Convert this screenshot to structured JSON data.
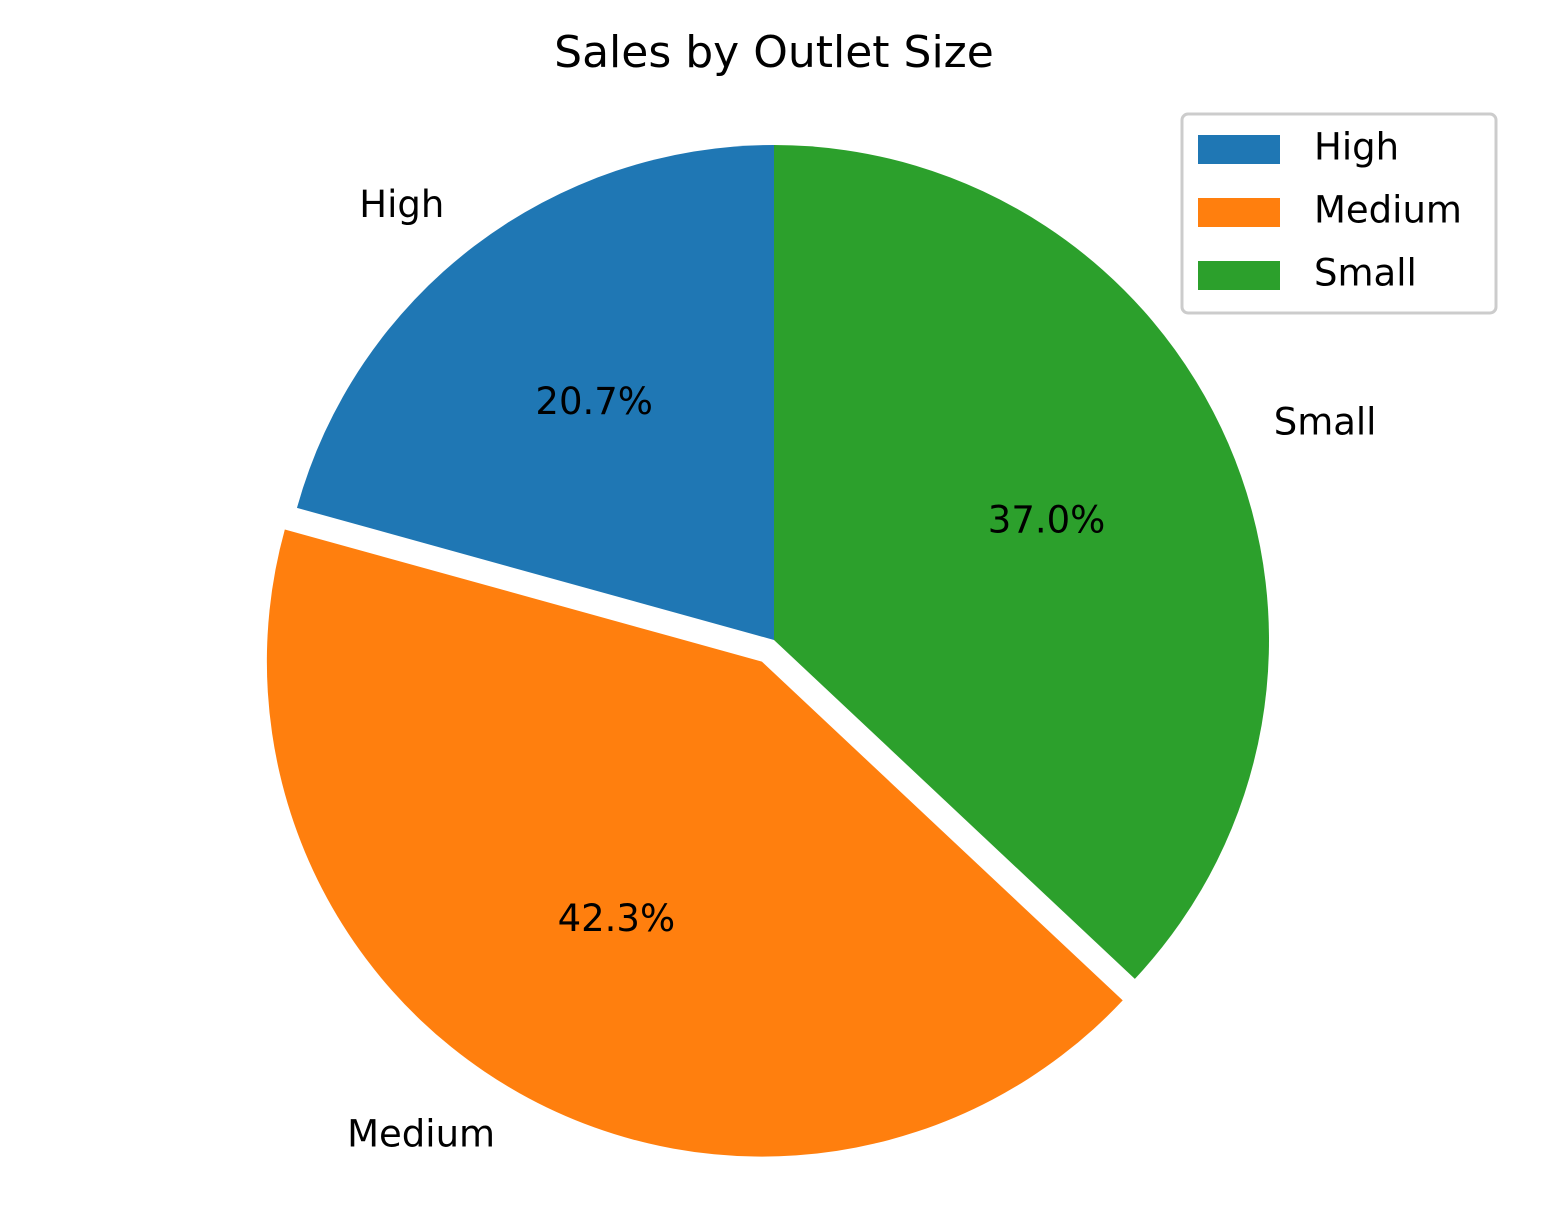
{
  "chart_data": {
    "type": "pie",
    "title": "Sales by Outlet Size",
    "slices": [
      {
        "label": "High",
        "percent_label": "20.7%",
        "value": 20.7,
        "color": "#1f77b4",
        "explode": 0
      },
      {
        "label": "Medium",
        "percent_label": "42.3%",
        "value": 42.3,
        "color": "#ff7f0e",
        "explode": 0.05
      },
      {
        "label": "Small",
        "percent_label": "37.0%",
        "value": 37.0,
        "color": "#2ca02c",
        "explode": 0
      }
    ],
    "start_angle_deg": 90,
    "direction": "counterclockwise",
    "legend": {
      "placement": "top-right",
      "entries": [
        "High",
        "Medium",
        "Small"
      ]
    }
  }
}
